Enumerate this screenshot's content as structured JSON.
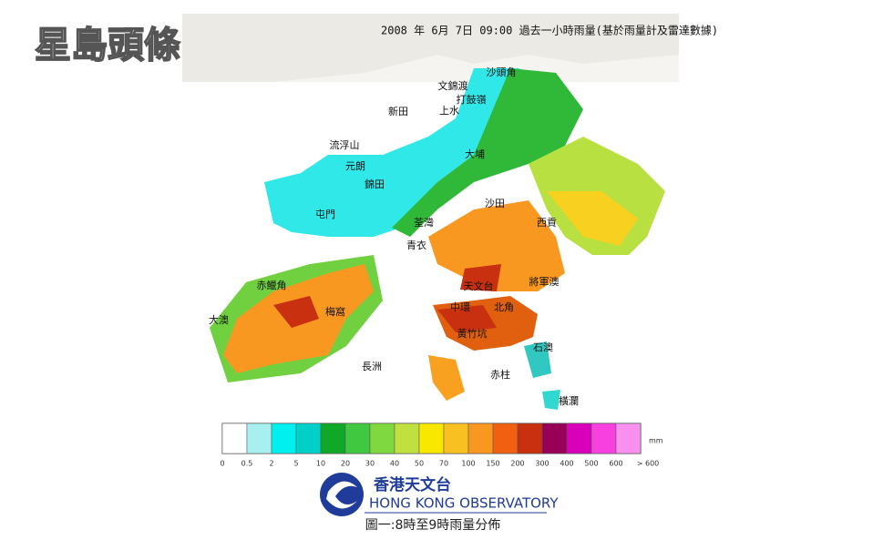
{
  "header": {
    "title": "2008 年 6月 7日 09:00  過去一小時雨量(基於雨量計及雷達數據)"
  },
  "watermark": "星島頭條",
  "places": [
    "沙頭角",
    "文錦渡",
    "打鼓嶺",
    "新田",
    "上水",
    "流浮山",
    "大埔",
    "元朗",
    "錦田",
    "沙田",
    "屯門",
    "荃灣",
    "西貢",
    "青衣",
    "赤鱲角",
    "將軍澳",
    "天文台",
    "中環",
    "北角",
    "梅窩",
    "大澳",
    "黃竹坑",
    "石澳",
    "赤柱",
    "長洲",
    "橫瀾"
  ],
  "legend": {
    "unit": "mm",
    "labels": [
      "0",
      "0.5",
      "2",
      "5",
      "10",
      "20",
      "30",
      "40",
      "50",
      "70",
      "100",
      "150",
      "200",
      "300",
      "400",
      "500",
      "600",
      "> 600"
    ],
    "colors": [
      "#ffffff",
      "#a8f0f0",
      "#00f0f0",
      "#00d0c8",
      "#10a828",
      "#40c840",
      "#80d840",
      "#c0e040",
      "#f8e800",
      "#f8c020",
      "#f89820",
      "#f06010",
      "#c83010",
      "#980058",
      "#d800b8",
      "#f840e0",
      "#f890f0",
      "#f8c8f8"
    ]
  },
  "logo": {
    "chinese": "香港天文台",
    "english": "HONG KONG OBSERVATORY"
  },
  "caption": "圖一:8時至9時雨量分佈"
}
